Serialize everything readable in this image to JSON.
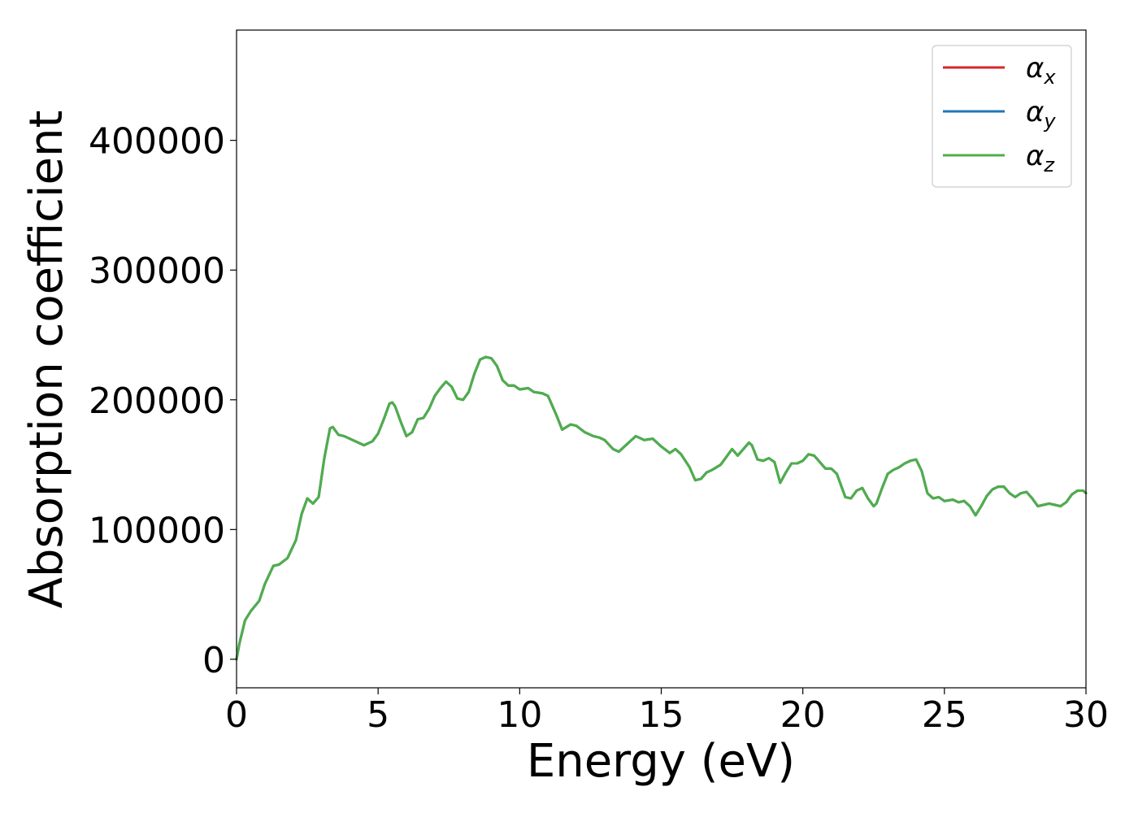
{
  "chart_data": {
    "type": "line",
    "title": "",
    "xlabel": "Energy (eV)",
    "ylabel": "Absorption coefficient",
    "xlim": [
      0,
      30
    ],
    "ylim": [
      -22000,
      485000
    ],
    "xticks": [
      0,
      5,
      10,
      15,
      20,
      25,
      30
    ],
    "xtick_labels": [
      "0",
      "5",
      "10",
      "15",
      "20",
      "25",
      "30"
    ],
    "yticks": [
      0,
      100000,
      200000,
      300000,
      400000
    ],
    "ytick_labels": [
      "0",
      "100000",
      "200000",
      "300000",
      "400000"
    ],
    "grid": false,
    "legend_position": "top-right",
    "x": [
      0,
      0.1,
      0.3,
      0.5,
      0.8,
      1.0,
      1.3,
      1.5,
      1.8,
      2.1,
      2.3,
      2.5,
      2.6,
      2.7,
      2.9,
      3.1,
      3.3,
      3.4,
      3.6,
      3.8,
      4.1,
      4.5,
      4.8,
      5.0,
      5.2,
      5.4,
      5.5,
      5.6,
      5.8,
      6.0,
      6.2,
      6.4,
      6.6,
      6.8,
      7.0,
      7.2,
      7.4,
      7.6,
      7.8,
      8.0,
      8.2,
      8.4,
      8.6,
      8.8,
      9.0,
      9.2,
      9.4,
      9.6,
      9.8,
      10.0,
      10.3,
      10.5,
      10.8,
      11.0,
      11.3,
      11.5,
      11.8,
      12.0,
      12.3,
      12.6,
      12.8,
      13.0,
      13.3,
      13.5,
      13.8,
      14.1,
      14.4,
      14.7,
      15.0,
      15.3,
      15.5,
      15.7,
      16.0,
      16.2,
      16.4,
      16.6,
      16.8,
      17.1,
      17.3,
      17.5,
      17.7,
      17.9,
      18.1,
      18.2,
      18.4,
      18.6,
      18.8,
      19.0,
      19.2,
      19.4,
      19.6,
      19.8,
      20.0,
      20.2,
      20.4,
      20.6,
      20.8,
      21.0,
      21.2,
      21.5,
      21.7,
      21.9,
      22.1,
      22.3,
      22.5,
      22.6,
      22.8,
      23.0,
      23.2,
      23.4,
      23.6,
      23.8,
      24.0,
      24.2,
      24.4,
      24.6,
      24.8,
      25.0,
      25.3,
      25.5,
      25.7,
      25.9,
      26.1,
      26.3,
      26.5,
      26.7,
      26.9,
      27.1,
      27.3,
      27.5,
      27.7,
      27.9,
      28.1,
      28.3,
      28.5,
      28.7,
      28.9,
      29.1,
      29.3,
      29.5,
      29.7,
      29.9,
      30.0
    ],
    "series": [
      {
        "name": "αx",
        "color": "#d62728",
        "values": [
          0,
          12000,
          30000,
          37000,
          45000,
          58000,
          72000,
          73000,
          78000,
          92000,
          112000,
          124000,
          122000,
          120000,
          125000,
          155000,
          178000,
          179000,
          173000,
          172000,
          169000,
          165000,
          168000,
          174000,
          185000,
          197000,
          198000,
          195000,
          183000,
          172000,
          175000,
          185000,
          186000,
          193000,
          203000,
          209000,
          214000,
          210000,
          201000,
          200000,
          206000,
          220000,
          231000,
          233000,
          232000,
          226000,
          215000,
          211000,
          211000,
          208000,
          209000,
          206000,
          205000,
          203000,
          188000,
          177000,
          181000,
          180000,
          175000,
          172000,
          171000,
          169000,
          162000,
          160000,
          166000,
          172000,
          169000,
          170000,
          164000,
          159000,
          162000,
          158000,
          148000,
          138000,
          139000,
          144000,
          146000,
          150000,
          156000,
          162000,
          157000,
          162000,
          167000,
          165000,
          154000,
          153000,
          155000,
          152000,
          136000,
          144000,
          151000,
          151000,
          153000,
          158000,
          157000,
          152000,
          147000,
          147000,
          143000,
          125000,
          124000,
          130000,
          132000,
          124000,
          118000,
          120000,
          132000,
          143000,
          146000,
          148000,
          151000,
          153000,
          154000,
          145000,
          128000,
          124000,
          125000,
          122000,
          123000,
          121000,
          122000,
          118000,
          111000,
          118000,
          126000,
          131000,
          133000,
          133000,
          128000,
          125000,
          128000,
          129000,
          124000,
          118000,
          119000,
          120000,
          119000,
          118000,
          121000,
          127000,
          130000,
          130000,
          128000
        ]
      },
      {
        "name": "αy",
        "color": "#1f77b4",
        "values": [
          0,
          12000,
          30000,
          37000,
          45000,
          58000,
          72000,
          73000,
          78000,
          92000,
          112000,
          124000,
          122000,
          120000,
          125000,
          155000,
          178000,
          179000,
          173000,
          172000,
          169000,
          165000,
          168000,
          174000,
          185000,
          197000,
          198000,
          195000,
          183000,
          172000,
          175000,
          185000,
          186000,
          193000,
          203000,
          209000,
          214000,
          210000,
          201000,
          200000,
          206000,
          220000,
          231000,
          233000,
          232000,
          226000,
          215000,
          211000,
          211000,
          208000,
          209000,
          206000,
          205000,
          203000,
          188000,
          177000,
          181000,
          180000,
          175000,
          172000,
          171000,
          169000,
          162000,
          160000,
          166000,
          172000,
          169000,
          170000,
          164000,
          159000,
          162000,
          158000,
          148000,
          138000,
          139000,
          144000,
          146000,
          150000,
          156000,
          162000,
          157000,
          162000,
          167000,
          165000,
          154000,
          153000,
          155000,
          152000,
          136000,
          144000,
          151000,
          151000,
          153000,
          158000,
          157000,
          152000,
          147000,
          147000,
          143000,
          125000,
          124000,
          130000,
          132000,
          124000,
          118000,
          120000,
          132000,
          143000,
          146000,
          148000,
          151000,
          153000,
          154000,
          145000,
          128000,
          124000,
          125000,
          122000,
          123000,
          121000,
          122000,
          118000,
          111000,
          118000,
          126000,
          131000,
          133000,
          133000,
          128000,
          125000,
          128000,
          129000,
          124000,
          118000,
          119000,
          120000,
          119000,
          118000,
          121000,
          127000,
          130000,
          130000,
          128000
        ]
      },
      {
        "name": "αz",
        "color": "#4daf4a",
        "values": [
          0,
          12000,
          30000,
          37000,
          45000,
          58000,
          72000,
          73000,
          78000,
          92000,
          112000,
          124000,
          122000,
          120000,
          125000,
          155000,
          178000,
          179000,
          173000,
          172000,
          169000,
          165000,
          168000,
          174000,
          185000,
          197000,
          198000,
          195000,
          183000,
          172000,
          175000,
          185000,
          186000,
          193000,
          203000,
          209000,
          214000,
          210000,
          201000,
          200000,
          206000,
          220000,
          231000,
          233000,
          232000,
          226000,
          215000,
          211000,
          211000,
          208000,
          209000,
          206000,
          205000,
          203000,
          188000,
          177000,
          181000,
          180000,
          175000,
          172000,
          171000,
          169000,
          162000,
          160000,
          166000,
          172000,
          169000,
          170000,
          164000,
          159000,
          162000,
          158000,
          148000,
          138000,
          139000,
          144000,
          146000,
          150000,
          156000,
          162000,
          157000,
          162000,
          167000,
          165000,
          154000,
          153000,
          155000,
          152000,
          136000,
          144000,
          151000,
          151000,
          153000,
          158000,
          157000,
          152000,
          147000,
          147000,
          143000,
          125000,
          124000,
          130000,
          132000,
          124000,
          118000,
          120000,
          132000,
          143000,
          146000,
          148000,
          151000,
          153000,
          154000,
          145000,
          128000,
          124000,
          125000,
          122000,
          123000,
          121000,
          122000,
          118000,
          111000,
          118000,
          126000,
          131000,
          133000,
          133000,
          128000,
          125000,
          128000,
          129000,
          124000,
          118000,
          119000,
          120000,
          119000,
          118000,
          121000,
          127000,
          130000,
          130000,
          128000
        ]
      }
    ],
    "legend": [
      {
        "base": "α",
        "sub": "x",
        "color": "#d62728"
      },
      {
        "base": "α",
        "sub": "y",
        "color": "#1f77b4"
      },
      {
        "base": "α",
        "sub": "z",
        "color": "#4daf4a"
      }
    ]
  }
}
